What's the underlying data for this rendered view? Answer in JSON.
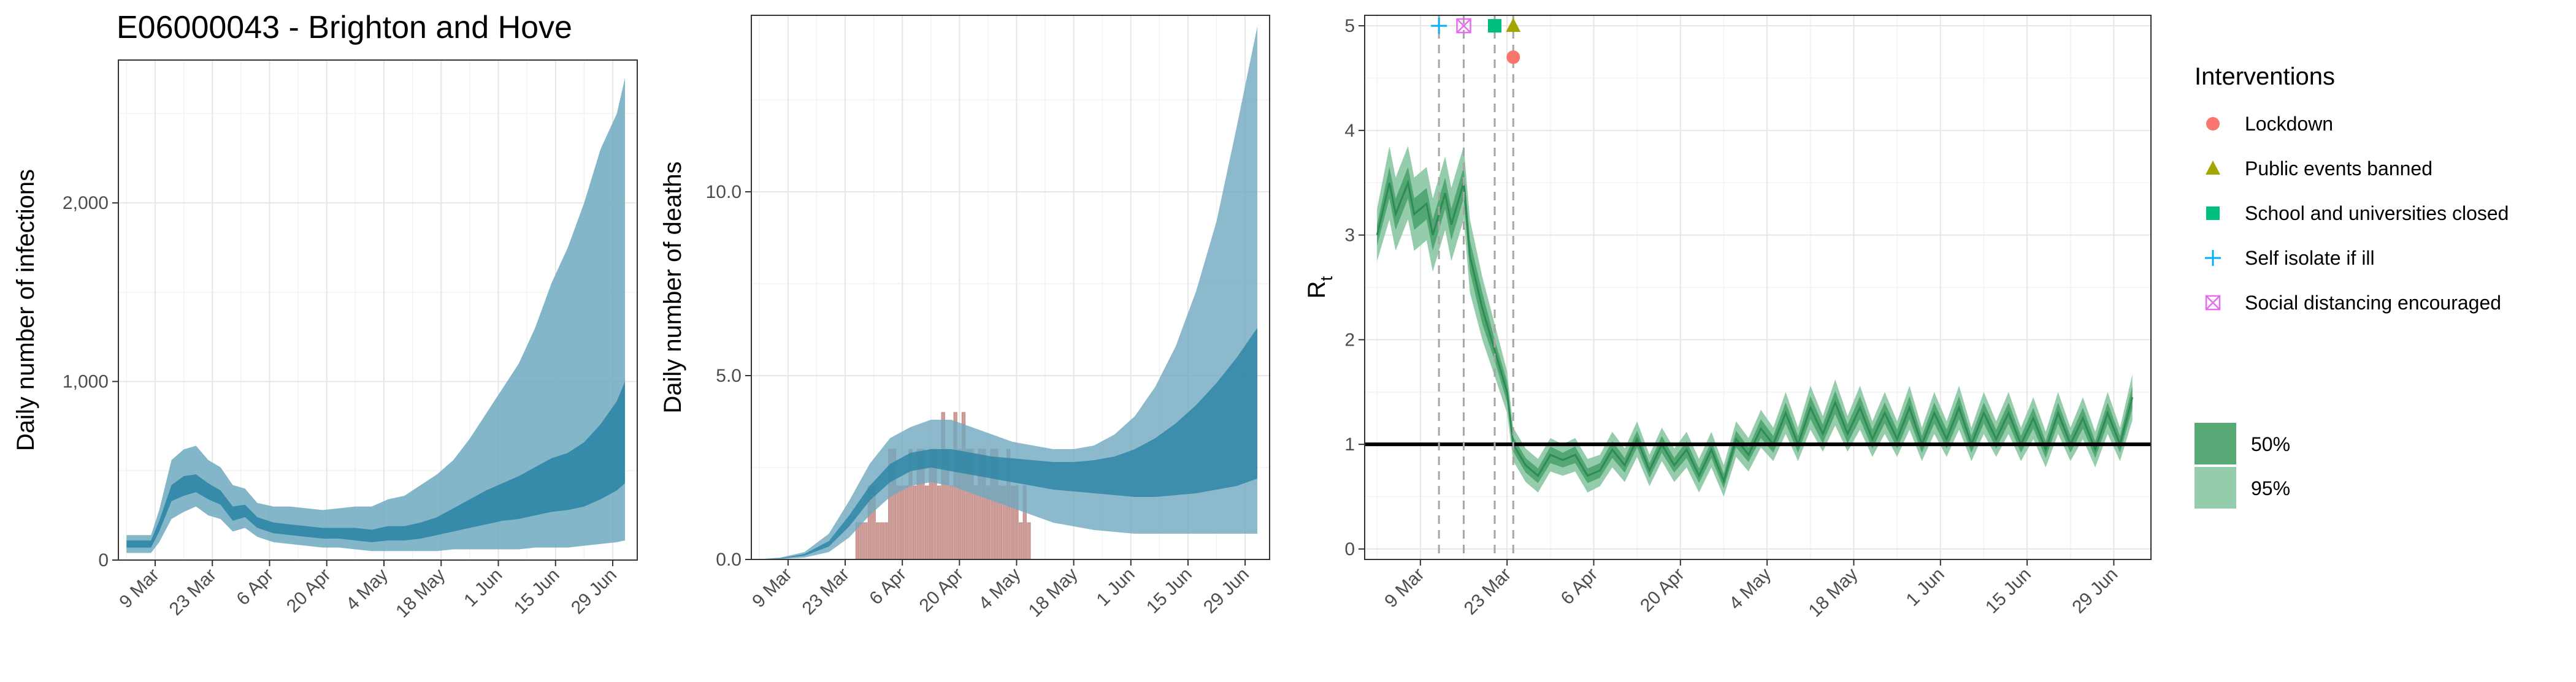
{
  "title": "E06000043 - Brighton and Hove",
  "colors": {
    "infection_band": "#6fa9bf",
    "infection_inner": "#2f86a6",
    "death_bar": "#c98b85",
    "rt_95": "#8fc9a8",
    "rt_50": "#4ea46f",
    "rt_line": "#2e8b57",
    "lockdown": "#f8766d",
    "public_events": "#a3a500",
    "schools": "#00bf7d",
    "self_isolate": "#00b0f6",
    "social_distancing": "#e76bf3"
  },
  "x_tick_labels": [
    "9 Mar",
    "23 Mar",
    "6 Apr",
    "20 Apr",
    "4 May",
    "18 May",
    "1 Jun",
    "15 Jun",
    "29 Jun"
  ],
  "legend": {
    "interventions_title": "Interventions",
    "items": [
      {
        "label": "Lockdown",
        "icon": "circle-marker"
      },
      {
        "label": "Public events banned",
        "icon": "triangle-marker"
      },
      {
        "label": "School and universities closed",
        "icon": "square-marker"
      },
      {
        "label": "Self isolate if ill",
        "icon": "plus-marker"
      },
      {
        "label": "Social distancing encouraged",
        "icon": "boxed-x-marker"
      }
    ],
    "ci_items": [
      {
        "label": "50%"
      },
      {
        "label": "95%"
      }
    ]
  },
  "chart_data": [
    {
      "type": "area",
      "ylabel": "Daily number of infections",
      "xlim": [
        "2020-02-29",
        "2020-07-05"
      ],
      "ylim": [
        0,
        2800
      ],
      "y_ticks": [
        0,
        1000,
        2000
      ],
      "y_tick_labels": [
        "0",
        "1,000",
        "2,000"
      ],
      "grid": true,
      "series": [
        {
          "x": [
            "2020-03-02",
            "2020-03-08",
            "2020-03-10",
            "2020-03-13",
            "2020-03-16",
            "2020-03-19",
            "2020-03-22",
            "2020-03-25",
            "2020-03-28",
            "2020-03-31",
            "2020-04-03",
            "2020-04-07",
            "2020-04-11",
            "2020-04-15",
            "2020-04-19",
            "2020-04-23",
            "2020-04-27",
            "2020-05-01",
            "2020-05-05",
            "2020-05-09",
            "2020-05-13",
            "2020-05-17",
            "2020-05-21",
            "2020-05-25",
            "2020-05-29",
            "2020-06-02",
            "2020-06-06",
            "2020-06-10",
            "2020-06-14",
            "2020-06-18",
            "2020-06-22",
            "2020-06-26",
            "2020-06-30",
            "2020-07-02"
          ],
          "lower_95": [
            40,
            40,
            100,
            230,
            270,
            300,
            250,
            230,
            160,
            180,
            130,
            100,
            90,
            80,
            70,
            70,
            60,
            50,
            50,
            50,
            50,
            50,
            60,
            60,
            60,
            60,
            60,
            70,
            70,
            70,
            80,
            90,
            100,
            110
          ],
          "lower_50": [
            70,
            70,
            160,
            330,
            360,
            380,
            340,
            310,
            220,
            240,
            180,
            150,
            140,
            130,
            120,
            120,
            110,
            100,
            110,
            110,
            120,
            140,
            160,
            180,
            200,
            220,
            230,
            250,
            270,
            280,
            300,
            340,
            390,
            430
          ],
          "upper_50": [
            110,
            110,
            220,
            420,
            470,
            480,
            430,
            390,
            300,
            310,
            240,
            210,
            200,
            190,
            180,
            180,
            180,
            170,
            190,
            190,
            210,
            240,
            290,
            340,
            390,
            430,
            470,
            520,
            570,
            600,
            660,
            760,
            890,
            1000
          ],
          "upper_95": [
            140,
            140,
            280,
            560,
            620,
            640,
            560,
            520,
            420,
            400,
            320,
            300,
            300,
            290,
            280,
            290,
            300,
            300,
            340,
            360,
            420,
            480,
            560,
            680,
            820,
            960,
            1100,
            1300,
            1550,
            1750,
            2000,
            2300,
            2500,
            2700
          ]
        }
      ]
    },
    {
      "type": "bar",
      "ylabel": "Daily number of deaths",
      "xlim": [
        "2020-02-29",
        "2020-07-05"
      ],
      "ylim": [
        0,
        14.8
      ],
      "y_ticks": [
        0,
        5,
        10
      ],
      "y_tick_labels": [
        "0.0",
        "5.0",
        "10.0"
      ],
      "grid": true,
      "bars": {
        "x": [
          "2020-03-26",
          "2020-03-27",
          "2020-03-28",
          "2020-03-29",
          "2020-03-30",
          "2020-03-31",
          "2020-04-01",
          "2020-04-02",
          "2020-04-03",
          "2020-04-04",
          "2020-04-05",
          "2020-04-06",
          "2020-04-07",
          "2020-04-08",
          "2020-04-09",
          "2020-04-10",
          "2020-04-11",
          "2020-04-12",
          "2020-04-13",
          "2020-04-14",
          "2020-04-15",
          "2020-04-16",
          "2020-04-17",
          "2020-04-18",
          "2020-04-19",
          "2020-04-20",
          "2020-04-21",
          "2020-04-22",
          "2020-04-23",
          "2020-04-24",
          "2020-04-25",
          "2020-04-26",
          "2020-04-27",
          "2020-04-28",
          "2020-04-29",
          "2020-04-30",
          "2020-05-01",
          "2020-05-02",
          "2020-05-03",
          "2020-05-04",
          "2020-05-05",
          "2020-05-06",
          "2020-05-07"
        ],
        "values": [
          1,
          1,
          1,
          2,
          2,
          1,
          1,
          1,
          3,
          3,
          2,
          2,
          2,
          3,
          2,
          3,
          3,
          2,
          3,
          3,
          2,
          4,
          3,
          2,
          4,
          3,
          4,
          3,
          3,
          2,
          3,
          3,
          2,
          3,
          3,
          2,
          2,
          3,
          2,
          2,
          1,
          2,
          1
        ]
      },
      "series": [
        {
          "x": [
            "2020-03-01",
            "2020-03-07",
            "2020-03-13",
            "2020-03-19",
            "2020-03-24",
            "2020-03-29",
            "2020-04-03",
            "2020-04-08",
            "2020-04-13",
            "2020-04-18",
            "2020-04-23",
            "2020-04-28",
            "2020-05-03",
            "2020-05-08",
            "2020-05-13",
            "2020-05-18",
            "2020-05-23",
            "2020-05-28",
            "2020-06-02",
            "2020-06-07",
            "2020-06-12",
            "2020-06-17",
            "2020-06-22",
            "2020-06-27",
            "2020-07-02"
          ],
          "lower_95": [
            0,
            0.01,
            0.05,
            0.2,
            0.6,
            1.2,
            1.7,
            2.0,
            2.1,
            2.0,
            1.8,
            1.6,
            1.4,
            1.2,
            1.0,
            0.9,
            0.8,
            0.75,
            0.7,
            0.7,
            0.7,
            0.7,
            0.7,
            0.7,
            0.7
          ],
          "lower_50": [
            0,
            0.02,
            0.1,
            0.35,
            0.9,
            1.6,
            2.1,
            2.4,
            2.5,
            2.4,
            2.3,
            2.2,
            2.1,
            2.0,
            1.9,
            1.85,
            1.8,
            1.75,
            1.7,
            1.7,
            1.75,
            1.8,
            1.9,
            2.0,
            2.2
          ],
          "upper_50": [
            0,
            0.03,
            0.15,
            0.5,
            1.2,
            2.0,
            2.6,
            2.9,
            3.0,
            3.0,
            2.9,
            2.8,
            2.75,
            2.7,
            2.65,
            2.65,
            2.7,
            2.8,
            3.0,
            3.3,
            3.7,
            4.2,
            4.8,
            5.5,
            6.3
          ],
          "upper_95": [
            0,
            0.05,
            0.2,
            0.7,
            1.6,
            2.6,
            3.3,
            3.6,
            3.8,
            3.8,
            3.6,
            3.4,
            3.2,
            3.1,
            3.0,
            3.0,
            3.1,
            3.4,
            3.9,
            4.7,
            5.8,
            7.3,
            9.2,
            11.8,
            14.5
          ]
        }
      ]
    },
    {
      "type": "line",
      "ylabel": "Rt",
      "xlim": [
        "2020-02-29",
        "2020-07-05"
      ],
      "ylim": [
        -0.1,
        5.1
      ],
      "y_ticks": [
        0,
        1,
        2,
        3,
        4,
        5
      ],
      "y_tick_labels": [
        "0",
        "1",
        "2",
        "3",
        "4",
        "5"
      ],
      "grid": true,
      "reference_line": 1,
      "interventions": [
        {
          "name": "Self isolate if ill",
          "date": "2020-03-12",
          "marker_y": 5.0
        },
        {
          "name": "Social distancing encouraged",
          "date": "2020-03-16",
          "marker_y": 5.0
        },
        {
          "name": "School and universities closed",
          "date": "2020-03-21",
          "marker_y": 5.0
        },
        {
          "name": "Public events banned",
          "date": "2020-03-24",
          "marker_y": 5.0
        },
        {
          "name": "Lockdown",
          "date": "2020-03-24",
          "marker_y": 4.7
        }
      ],
      "series": [
        {
          "x": [
            "2020-03-02",
            "2020-03-04",
            "2020-03-05",
            "2020-03-07",
            "2020-03-08",
            "2020-03-10",
            "2020-03-11",
            "2020-03-13",
            "2020-03-14",
            "2020-03-16",
            "2020-03-17",
            "2020-03-19",
            "2020-03-21",
            "2020-03-23",
            "2020-03-24",
            "2020-03-26",
            "2020-03-28",
            "2020-03-30",
            "2020-04-01",
            "2020-04-03",
            "2020-04-05",
            "2020-04-07",
            "2020-04-09",
            "2020-04-11",
            "2020-04-13",
            "2020-04-15",
            "2020-04-17",
            "2020-04-19",
            "2020-04-21",
            "2020-04-23",
            "2020-04-25",
            "2020-04-27",
            "2020-04-29",
            "2020-05-01",
            "2020-05-03",
            "2020-05-05",
            "2020-05-07",
            "2020-05-09",
            "2020-05-11",
            "2020-05-13",
            "2020-05-15",
            "2020-05-17",
            "2020-05-19",
            "2020-05-21",
            "2020-05-23",
            "2020-05-25",
            "2020-05-27",
            "2020-05-29",
            "2020-05-31",
            "2020-06-02",
            "2020-06-04",
            "2020-06-06",
            "2020-06-08",
            "2020-06-10",
            "2020-06-12",
            "2020-06-14",
            "2020-06-16",
            "2020-06-18",
            "2020-06-20",
            "2020-06-22",
            "2020-06-24",
            "2020-06-26",
            "2020-06-28",
            "2020-06-30",
            "2020-07-02"
          ],
          "median": [
            3.0,
            3.5,
            3.2,
            3.5,
            3.2,
            3.3,
            3.0,
            3.4,
            3.1,
            3.5,
            2.8,
            2.3,
            1.9,
            1.5,
            1.0,
            0.8,
            0.7,
            0.9,
            0.85,
            0.9,
            0.7,
            0.75,
            0.95,
            0.8,
            1.05,
            0.75,
            1.0,
            0.8,
            0.95,
            0.7,
            0.95,
            0.65,
            1.05,
            0.9,
            1.15,
            1.0,
            1.3,
            1.0,
            1.35,
            1.1,
            1.4,
            1.1,
            1.35,
            1.05,
            1.3,
            1.05,
            1.35,
            1.0,
            1.3,
            1.05,
            1.35,
            1.0,
            1.3,
            1.05,
            1.3,
            1.0,
            1.25,
            0.95,
            1.3,
            1.0,
            1.25,
            0.95,
            1.3,
            1.0,
            1.45
          ],
          "lower_50": [
            2.9,
            3.35,
            3.05,
            3.35,
            3.05,
            3.15,
            2.85,
            3.25,
            2.95,
            3.35,
            2.65,
            2.15,
            1.8,
            1.4,
            0.93,
            0.73,
            0.63,
            0.82,
            0.78,
            0.82,
            0.63,
            0.68,
            0.87,
            0.73,
            0.97,
            0.68,
            0.92,
            0.73,
            0.87,
            0.63,
            0.87,
            0.58,
            0.97,
            0.83,
            1.06,
            0.92,
            1.2,
            0.92,
            1.24,
            1.01,
            1.29,
            1.01,
            1.24,
            0.96,
            1.2,
            0.96,
            1.24,
            0.92,
            1.2,
            0.96,
            1.24,
            0.92,
            1.2,
            0.96,
            1.2,
            0.92,
            1.15,
            0.87,
            1.2,
            0.92,
            1.15,
            0.87,
            1.2,
            0.92,
            1.34
          ],
          "upper_50": [
            3.1,
            3.65,
            3.35,
            3.65,
            3.35,
            3.45,
            3.15,
            3.55,
            3.25,
            3.65,
            2.95,
            2.45,
            2.0,
            1.6,
            1.07,
            0.87,
            0.77,
            0.98,
            0.92,
            0.98,
            0.77,
            0.82,
            1.03,
            0.87,
            1.13,
            0.82,
            1.08,
            0.87,
            1.03,
            0.77,
            1.03,
            0.72,
            1.13,
            0.97,
            1.24,
            1.08,
            1.4,
            1.08,
            1.46,
            1.19,
            1.51,
            1.19,
            1.46,
            1.14,
            1.4,
            1.14,
            1.46,
            1.08,
            1.4,
            1.14,
            1.46,
            1.08,
            1.4,
            1.14,
            1.4,
            1.08,
            1.35,
            1.03,
            1.4,
            1.08,
            1.35,
            1.03,
            1.4,
            1.08,
            1.56
          ],
          "lower_95": [
            2.75,
            3.15,
            2.85,
            3.15,
            2.85,
            2.95,
            2.65,
            3.05,
            2.75,
            3.15,
            2.45,
            2.0,
            1.65,
            1.3,
            0.84,
            0.64,
            0.54,
            0.74,
            0.7,
            0.74,
            0.54,
            0.6,
            0.78,
            0.64,
            0.88,
            0.6,
            0.84,
            0.64,
            0.78,
            0.54,
            0.78,
            0.5,
            0.88,
            0.74,
            0.97,
            0.84,
            1.1,
            0.84,
            1.14,
            0.93,
            1.18,
            0.93,
            1.14,
            0.88,
            1.1,
            0.88,
            1.14,
            0.84,
            1.1,
            0.88,
            1.14,
            0.84,
            1.1,
            0.88,
            1.1,
            0.84,
            1.05,
            0.78,
            1.1,
            0.84,
            1.05,
            0.78,
            1.1,
            0.84,
            1.23
          ],
          "upper_95": [
            3.25,
            3.85,
            3.55,
            3.85,
            3.55,
            3.65,
            3.35,
            3.75,
            3.45,
            3.85,
            3.15,
            2.6,
            2.15,
            1.7,
            1.16,
            0.96,
            0.86,
            1.06,
            1.0,
            1.06,
            0.86,
            0.9,
            1.12,
            0.96,
            1.22,
            0.9,
            1.16,
            0.96,
            1.12,
            0.86,
            1.12,
            0.8,
            1.22,
            1.06,
            1.33,
            1.16,
            1.5,
            1.16,
            1.56,
            1.27,
            1.62,
            1.27,
            1.56,
            1.22,
            1.5,
            1.22,
            1.56,
            1.16,
            1.5,
            1.22,
            1.56,
            1.16,
            1.5,
            1.22,
            1.5,
            1.16,
            1.45,
            1.12,
            1.5,
            1.16,
            1.45,
            1.12,
            1.5,
            1.16,
            1.67
          ]
        }
      ]
    }
  ]
}
